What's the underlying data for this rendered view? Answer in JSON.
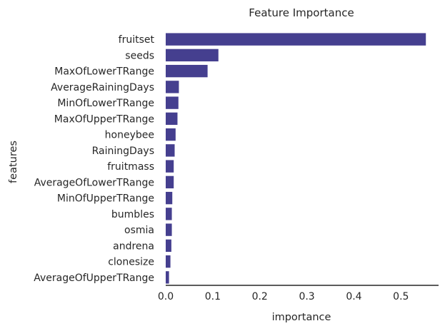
{
  "chart_data": {
    "type": "bar",
    "orientation": "horizontal",
    "title": "Feature Importance",
    "xlabel": "importance",
    "ylabel": "features",
    "xlim": [
      0,
      0.58
    ],
    "xticks": [
      "0.0",
      "0.1",
      "0.2",
      "0.3",
      "0.4",
      "0.5"
    ],
    "xtick_values": [
      0,
      0.1,
      0.2,
      0.3,
      0.4,
      0.5
    ],
    "grid": false,
    "bar_color": "#453f8f",
    "categories": [
      "fruitset",
      "seeds",
      "MaxOfLowerTRange",
      "AverageRainingDays",
      "MinOfLowerTRange",
      "MaxOfUpperTRange",
      "honeybee",
      "RainingDays",
      "fruitmass",
      "AverageOfLowerTRange",
      "MinOfUpperTRange",
      "bumbles",
      "osmia",
      "andrena",
      "clonesize",
      "AverageOfUpperTRange"
    ],
    "values": [
      0.553,
      0.112,
      0.089,
      0.028,
      0.027,
      0.025,
      0.021,
      0.019,
      0.017,
      0.017,
      0.014,
      0.013,
      0.013,
      0.012,
      0.01,
      0.007
    ]
  }
}
